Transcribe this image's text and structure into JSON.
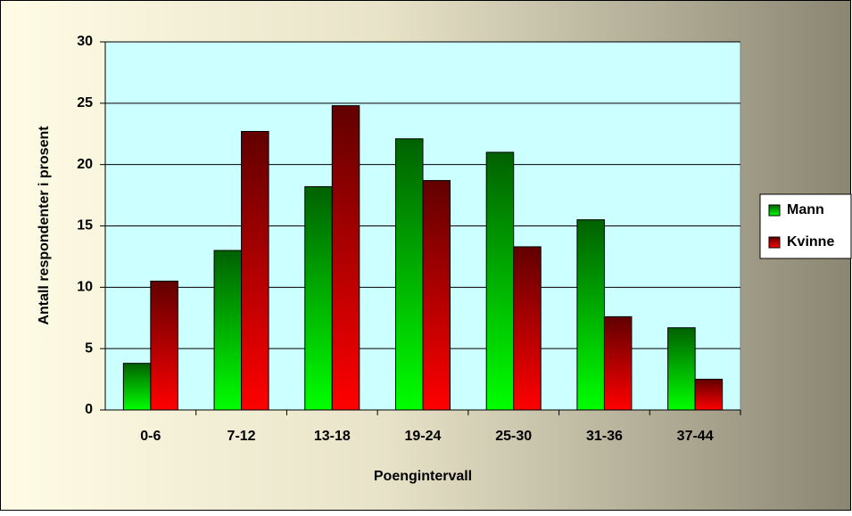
{
  "chart_data": {
    "type": "bar",
    "x_label": "Poengintervall",
    "y_label": "Antall respondenter i prosent",
    "categories": [
      "0-6",
      "7-12",
      "13-18",
      "19-24",
      "25-30",
      "31-36",
      "37-44"
    ],
    "series": [
      {
        "name": "Mann",
        "color": "#00ff00",
        "values": [
          3.8,
          13.0,
          18.2,
          22.1,
          21.0,
          15.5,
          6.7
        ]
      },
      {
        "name": "Kvinne",
        "color": "#ff0000",
        "values": [
          10.5,
          22.7,
          24.8,
          18.7,
          13.3,
          7.6,
          2.5
        ]
      }
    ],
    "ylim": [
      0,
      30
    ],
    "yticks": [
      0,
      5,
      10,
      15,
      20,
      25,
      30
    ],
    "grid": true,
    "legend": "right"
  }
}
